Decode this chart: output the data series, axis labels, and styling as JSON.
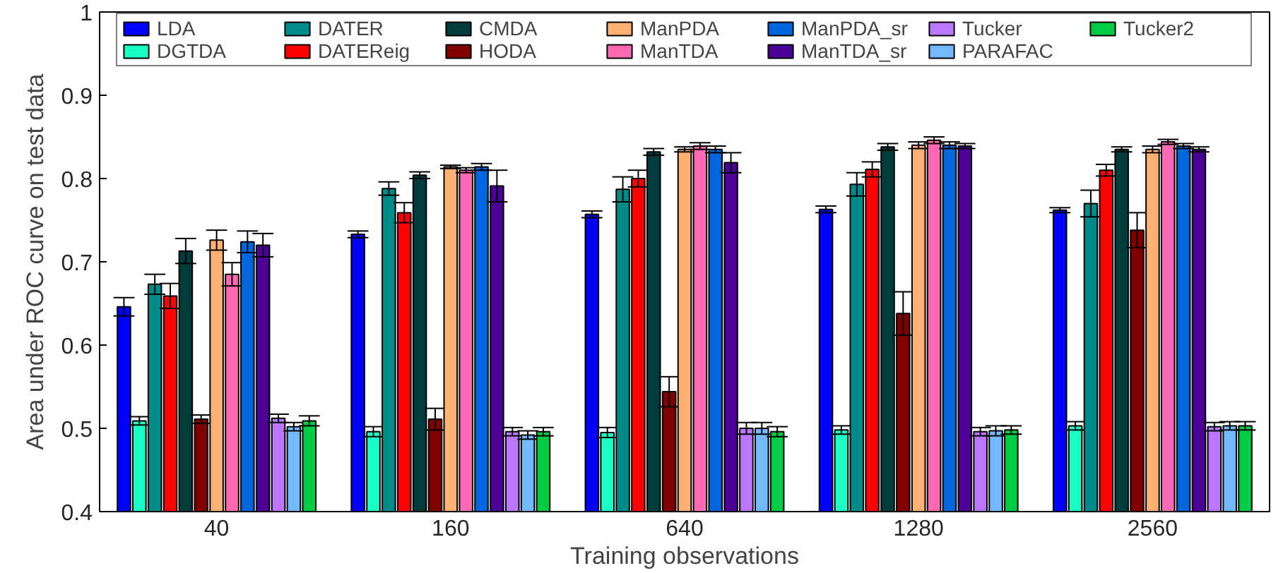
{
  "chart_data": {
    "type": "bar",
    "xlabel": "Training observations",
    "ylabel": "Area under ROC curve on test data",
    "categories": [
      "40",
      "160",
      "640",
      "1280",
      "2560"
    ],
    "ylim": [
      0.4,
      1
    ],
    "yticks": [
      0.4,
      0.5,
      0.6,
      0.7,
      0.8,
      0.9,
      1
    ],
    "grid": false,
    "legend": "top",
    "series": [
      {
        "name": "LDA",
        "color": "#0000ff",
        "values": [
          0.646,
          0.733,
          0.757,
          0.763,
          0.762
        ],
        "errors": [
          0.011,
          0.004,
          0.004,
          0.004,
          0.003
        ]
      },
      {
        "name": "DGTDA",
        "color": "#1affc6",
        "values": [
          0.509,
          0.496,
          0.495,
          0.498,
          0.503
        ],
        "errors": [
          0.005,
          0.006,
          0.006,
          0.005,
          0.005
        ]
      },
      {
        "name": "DATER",
        "color": "#008b8b",
        "values": [
          0.673,
          0.788,
          0.787,
          0.793,
          0.77
        ],
        "errors": [
          0.012,
          0.008,
          0.015,
          0.014,
          0.016
        ]
      },
      {
        "name": "DATEReig",
        "color": "#ff0000",
        "values": [
          0.659,
          0.759,
          0.8,
          0.811,
          0.81
        ],
        "errors": [
          0.015,
          0.012,
          0.01,
          0.009,
          0.007
        ]
      },
      {
        "name": "CMDA",
        "color": "#003c3c",
        "values": [
          0.713,
          0.804,
          0.832,
          0.838,
          0.835
        ],
        "errors": [
          0.015,
          0.004,
          0.004,
          0.004,
          0.003
        ]
      },
      {
        "name": "HODA",
        "color": "#800000",
        "values": [
          0.511,
          0.511,
          0.544,
          0.638,
          0.738
        ],
        "errors": [
          0.005,
          0.013,
          0.018,
          0.026,
          0.021
        ]
      },
      {
        "name": "ManPDA",
        "color": "#ffb073",
        "values": [
          0.726,
          0.814,
          0.835,
          0.84,
          0.835
        ],
        "errors": [
          0.012,
          0.002,
          0.003,
          0.004,
          0.004
        ]
      },
      {
        "name": "ManTDA",
        "color": "#ff69b4",
        "values": [
          0.685,
          0.81,
          0.839,
          0.846,
          0.844
        ],
        "errors": [
          0.014,
          0.003,
          0.004,
          0.004,
          0.003
        ]
      },
      {
        "name": "ManPDA_sr",
        "color": "#0066dd",
        "values": [
          0.724,
          0.814,
          0.835,
          0.84,
          0.839
        ],
        "errors": [
          0.013,
          0.004,
          0.004,
          0.004,
          0.003
        ]
      },
      {
        "name": "ManTDA_sr",
        "color": "#4b0096",
        "values": [
          0.72,
          0.791,
          0.819,
          0.839,
          0.835
        ],
        "errors": [
          0.014,
          0.019,
          0.012,
          0.003,
          0.003
        ]
      },
      {
        "name": "Tucker",
        "color": "#bb77ff",
        "values": [
          0.512,
          0.496,
          0.5,
          0.496,
          0.502
        ],
        "errors": [
          0.005,
          0.005,
          0.007,
          0.005,
          0.005
        ]
      },
      {
        "name": "PARAFAC",
        "color": "#73b9ff",
        "values": [
          0.502,
          0.492,
          0.5,
          0.497,
          0.503
        ],
        "errors": [
          0.005,
          0.005,
          0.007,
          0.006,
          0.005
        ]
      },
      {
        "name": "Tucker2",
        "color": "#00cc44",
        "values": [
          0.509,
          0.496,
          0.496,
          0.498,
          0.503
        ],
        "errors": [
          0.006,
          0.005,
          0.006,
          0.005,
          0.005
        ]
      }
    ]
  }
}
